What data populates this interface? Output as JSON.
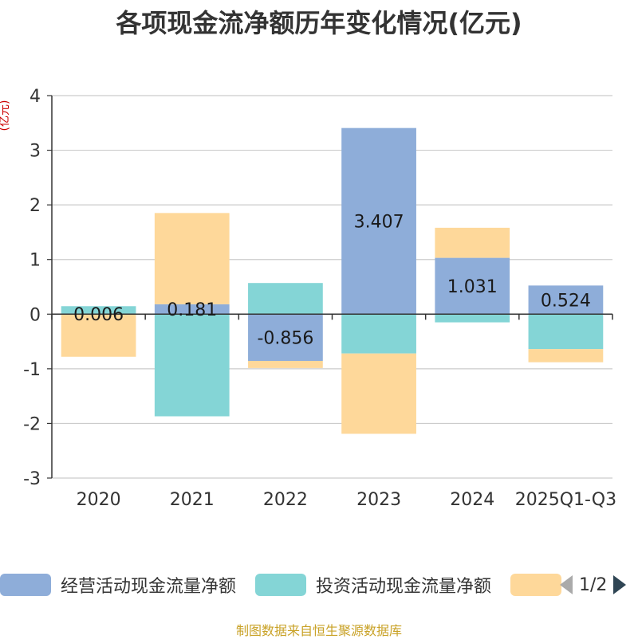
{
  "chart_data": {
    "type": "bar",
    "stacked": true,
    "title": "各项现金流净额历年变化情况(亿元)",
    "ylabel": "(亿元)",
    "xlabel": "",
    "ylim": [
      -3,
      4
    ],
    "yticks": [
      4,
      3,
      2,
      1,
      0,
      -1,
      -2,
      -3
    ],
    "categories": [
      "2020",
      "2021",
      "2022",
      "2023",
      "2024",
      "2025Q1-Q3"
    ],
    "series": [
      {
        "name": "经营活动现金流量净额",
        "color": "#8eadd9",
        "values": [
          0.006,
          0.181,
          -0.856,
          3.407,
          1.031,
          0.524
        ],
        "labels": [
          "0.006",
          "0.181",
          "-0.856",
          "3.407",
          "1.031",
          "0.524"
        ]
      },
      {
        "name": "投资活动现金流量净额",
        "color": "#84d5d6",
        "values": [
          0.14,
          -1.87,
          0.57,
          -0.72,
          -0.15,
          -0.64
        ]
      },
      {
        "name": "",
        "color": "#fed89a",
        "values": [
          -0.78,
          1.67,
          -0.13,
          -1.47,
          0.55,
          -0.24
        ]
      }
    ],
    "legend_position": "bottom",
    "grid": true
  },
  "legend": {
    "pager_text": "1/2"
  },
  "source_note": "制图数据来自恒生聚源数据库"
}
